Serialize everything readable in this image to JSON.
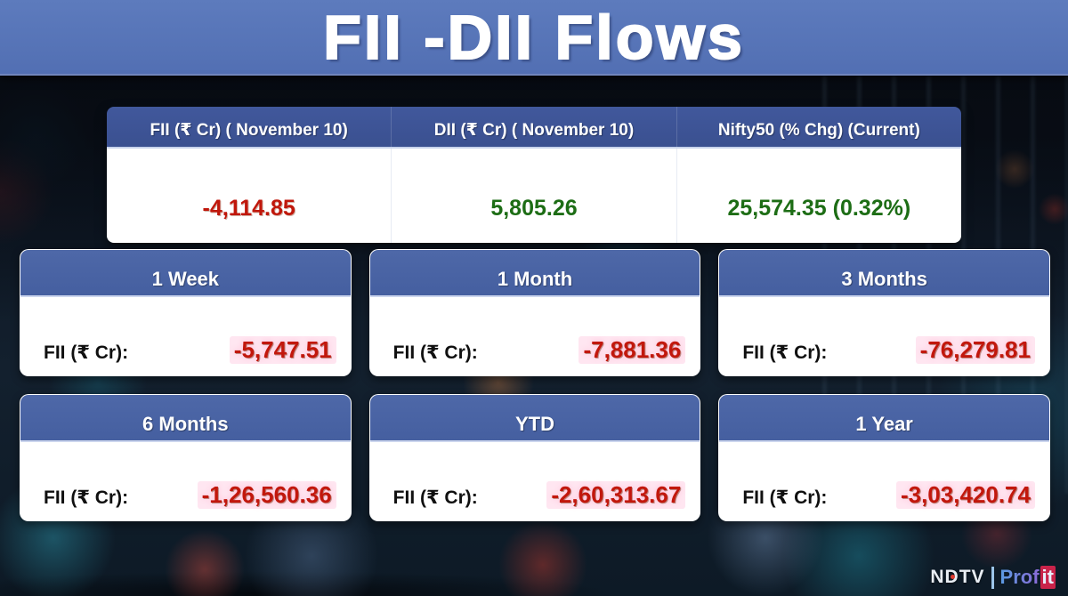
{
  "title": "FII -DII Flows",
  "summary_table": {
    "columns": [
      {
        "header": "FII (₹ Cr) ( November 10)",
        "value": "-4,114.85",
        "trend": "negative"
      },
      {
        "header": "DII (₹ Cr) ( November 10)",
        "value": "5,805.26",
        "trend": "positive"
      },
      {
        "header": "Nifty50 (% Chg) (Current)",
        "value": "25,574.35 (0.32%)",
        "trend": "positive"
      }
    ]
  },
  "flow_cards": [
    {
      "period": "1 Week",
      "label": "FII (₹ Cr):",
      "value": "-5,747.51"
    },
    {
      "period": "1 Month",
      "label": "FII (₹ Cr):",
      "value": "-7,881.36"
    },
    {
      "period": "3 Months",
      "label": "FII (₹ Cr):",
      "value": "-76,279.81"
    },
    {
      "period": "6 Months",
      "label": "FII (₹ Cr):",
      "value": "-1,26,560.36"
    },
    {
      "period": "YTD",
      "label": "FII (₹ Cr):",
      "value": "-2,60,313.67"
    },
    {
      "period": "1 Year",
      "label": "FII (₹ Cr):",
      "value": "-3,03,420.74"
    }
  ],
  "logo": {
    "brand": "NDTV",
    "product_prefix": "Prof",
    "product_suffix": "it"
  },
  "colors": {
    "banner": "#5573b8",
    "table_header": "#3d5295",
    "card_header": "#4a64a4",
    "negative": "#c2170c",
    "positive": "#1d6d15"
  },
  "chart_data": {
    "type": "table",
    "title": "FII -DII Flows",
    "daily": {
      "date": "November 10",
      "fii_cr": -4114.85,
      "dii_cr": 5805.26,
      "nifty50_current": 25574.35,
      "nifty50_pct_chg": 0.32
    },
    "categories": [
      "1 Week",
      "1 Month",
      "3 Months",
      "6 Months",
      "YTD",
      "1 Year"
    ],
    "series": [
      {
        "name": "FII (₹ Cr)",
        "values": [
          -5747.51,
          -7881.36,
          -76279.81,
          -126560.36,
          -260313.67,
          -303420.74
        ]
      }
    ]
  }
}
